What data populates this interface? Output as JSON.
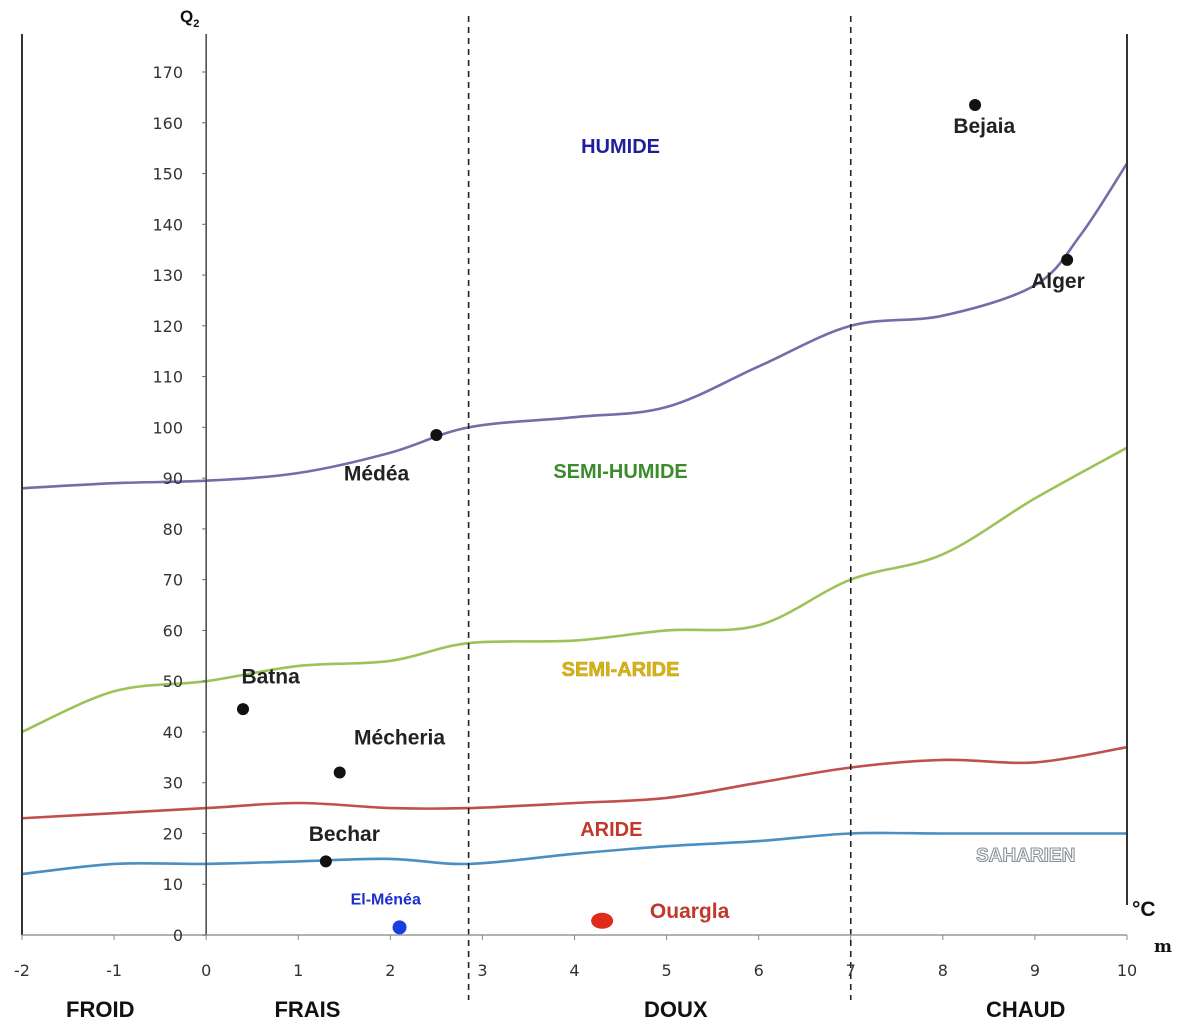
{
  "chart_data": {
    "type": "line",
    "ylabel": "Q",
    "ylabel_sub": "2",
    "xunit": "°C",
    "xlabel": "m",
    "xlim": [
      -2,
      10
    ],
    "ylim": [
      0,
      170
    ],
    "yticks": [
      "0",
      "10",
      "20",
      "30",
      "40",
      "50",
      "60",
      "70",
      "80",
      "90",
      "100",
      "110",
      "120",
      "130",
      "140",
      "150",
      "160",
      "170"
    ],
    "xticks": [
      "-2",
      "-1",
      "0",
      "1",
      "2",
      "3",
      "4",
      "5",
      "6",
      "7",
      "8",
      "9",
      "10"
    ],
    "boundaries": [
      2.85,
      7
    ],
    "series": [
      {
        "color": "#7a6aa8",
        "x": [
          -2,
          -1,
          0,
          1,
          2,
          2.85,
          4,
          5,
          6,
          7,
          8,
          9,
          9.5,
          10
        ],
        "y": [
          88,
          89,
          89.5,
          91,
          95,
          100,
          102,
          104,
          112,
          120,
          122,
          128,
          138,
          152
        ]
      },
      {
        "color": "#9dc358",
        "x": [
          -2,
          -1,
          0,
          1,
          2,
          2.85,
          4,
          5,
          6,
          7,
          8,
          9,
          10
        ],
        "y": [
          40,
          48,
          50,
          53,
          54,
          57.5,
          58,
          60,
          61,
          70,
          75,
          86,
          96
        ]
      },
      {
        "color": "#c0504d",
        "x": [
          -2,
          -1,
          0,
          1,
          2,
          2.85,
          4,
          5,
          6,
          7,
          8,
          9,
          10
        ],
        "y": [
          23,
          24,
          25,
          26,
          25,
          25,
          26,
          27,
          30,
          33,
          34.5,
          34,
          37
        ]
      },
      {
        "color": "#4a8ec2",
        "x": [
          -2,
          -1,
          0,
          1,
          2,
          2.85,
          4,
          5,
          6,
          7,
          8,
          9,
          10
        ],
        "y": [
          12,
          14,
          14,
          14.5,
          15,
          14,
          16,
          17.5,
          18.5,
          20,
          20,
          20,
          20
        ]
      }
    ],
    "zones": [
      {
        "label": "HUMIDE",
        "color": "#1f1f9e",
        "x": 4.5,
        "y": 154
      },
      {
        "label": "SEMI-HUMIDE",
        "color": "#3c8c2c",
        "x": 4.5,
        "y": 90
      },
      {
        "label": "SEMI-ARIDE",
        "color": "#d9b21a",
        "x": 4.5,
        "y": 51
      },
      {
        "label": "ARIDE",
        "color": "#c0392b",
        "x": 4.4,
        "y": 19.5
      },
      {
        "label": "SAHARIEN",
        "color": "#9aa0a8",
        "x": 8.9,
        "y": 14.5
      }
    ],
    "stations": [
      {
        "name": "Bejaia",
        "x": 8.35,
        "y": 163.5,
        "lx": 8.45,
        "ly": 158,
        "color": "#111111",
        "size": 6,
        "labelColor": "#222222",
        "fs": 21
      },
      {
        "name": "Alger",
        "x": 9.35,
        "y": 133,
        "lx": 9.25,
        "ly": 127.5,
        "color": "#111111",
        "size": 6,
        "labelColor": "#222222",
        "fs": 21
      },
      {
        "name": "Médéa",
        "x": 2.5,
        "y": 98.5,
        "lx": 1.85,
        "ly": 89.5,
        "color": "#111111",
        "size": 6,
        "labelColor": "#222222",
        "fs": 21
      },
      {
        "name": "Batna",
        "x": 0.4,
        "y": 44.5,
        "lx": 0.7,
        "ly": 49.5,
        "color": "#111111",
        "size": 6,
        "labelColor": "#222222",
        "fs": 21
      },
      {
        "name": "Mécheria",
        "x": 1.45,
        "y": 32,
        "lx": 2.1,
        "ly": 37.5,
        "color": "#111111",
        "size": 6,
        "labelColor": "#222222",
        "fs": 21
      },
      {
        "name": "Bechar",
        "x": 1.3,
        "y": 14.5,
        "lx": 1.5,
        "ly": 18.5,
        "color": "#111111",
        "size": 6,
        "labelColor": "#222222",
        "fs": 21
      },
      {
        "name": "El-Ménéa",
        "x": 2.1,
        "y": 1.5,
        "lx": 1.95,
        "ly": 6,
        "color": "#1a3ee0",
        "size": 7,
        "labelColor": "#1a2fcc",
        "fs": 16
      },
      {
        "name": "Ouargla",
        "x": 4.3,
        "y": 2.8,
        "lx": 5.25,
        "ly": 3.3,
        "color": "#e02a1a",
        "size": 10,
        "labelColor": "#c0392b",
        "fs": 21
      }
    ],
    "regions": [
      {
        "label": "FROID",
        "x": -1.15
      },
      {
        "label": "FRAIS",
        "x": 1.1
      },
      {
        "label": "DOUX",
        "x": 5.1
      },
      {
        "label": "CHAUD",
        "x": 8.9
      }
    ]
  }
}
